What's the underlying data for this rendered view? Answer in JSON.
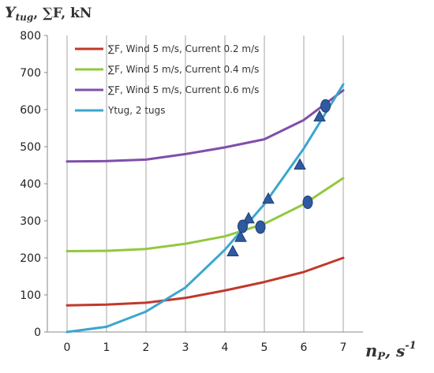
{
  "chart_data": {
    "type": "line",
    "title": "",
    "ylabel_parts": {
      "main": "Y",
      "sub": "tug",
      "rest": ", ∑F, kN"
    },
    "xlabel_parts": {
      "main": "n",
      "sub": "P",
      "rest": ", s",
      "sup": "-1"
    },
    "xlim": [
      -0.5,
      7.5
    ],
    "ylim": [
      0,
      800
    ],
    "xticks": [
      "0",
      "1",
      "2",
      "3",
      "4",
      "5",
      "6",
      "7"
    ],
    "yticks": [
      "0",
      "100",
      "200",
      "300",
      "400",
      "500",
      "600",
      "700",
      "800"
    ],
    "grid": {
      "vertical": true,
      "horizontal": false
    },
    "legend_position": "top-left",
    "series": [
      {
        "name": "∑F, Wind 5 m/s, Current 0.2 m/s",
        "color": "#c0392b",
        "x": [
          0,
          1,
          2,
          3,
          4,
          5,
          6,
          7
        ],
        "y": [
          72,
          74,
          79,
          92,
          112,
          135,
          162,
          200
        ]
      },
      {
        "name": "∑F, Wind 5 m/s, Current 0.4 m/s",
        "color": "#92c83e",
        "x": [
          0,
          1,
          2,
          3,
          4,
          5,
          6,
          7
        ],
        "y": [
          218,
          219,
          224,
          238,
          258,
          292,
          345,
          415
        ]
      },
      {
        "name": "∑F, Wind 5 m/s, Current 0.6 m/s",
        "color": "#7f4fa8",
        "x": [
          0,
          1,
          2,
          3,
          4,
          5,
          6,
          7
        ],
        "y": [
          460,
          461,
          465,
          480,
          498,
          520,
          572,
          652
        ]
      },
      {
        "name": "Ytug, 2 tugs",
        "color": "#3aa6cf",
        "x": [
          0,
          1,
          2,
          3,
          4,
          5,
          6,
          7
        ],
        "y": [
          0,
          14,
          55,
          120,
          222,
          345,
          495,
          668
        ]
      }
    ],
    "markers": {
      "triangles": {
        "color": "#2f5aa0",
        "points": [
          {
            "x": 4.2,
            "y": 218
          },
          {
            "x": 4.4,
            "y": 257
          },
          {
            "x": 4.6,
            "y": 307
          },
          {
            "x": 5.1,
            "y": 360
          },
          {
            "x": 5.9,
            "y": 452
          },
          {
            "x": 6.4,
            "y": 582
          }
        ]
      },
      "ellipses": {
        "color": "#2f5aa0",
        "points": [
          {
            "x": 4.45,
            "y": 285
          },
          {
            "x": 4.9,
            "y": 283
          },
          {
            "x": 6.1,
            "y": 350
          },
          {
            "x": 6.55,
            "y": 610
          }
        ]
      }
    }
  }
}
